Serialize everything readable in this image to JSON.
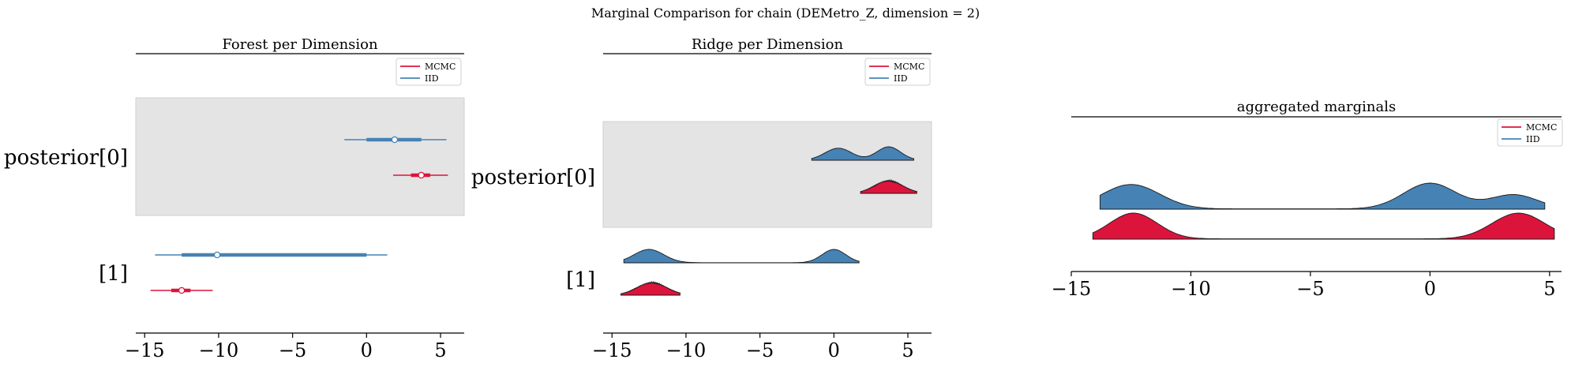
{
  "figure": {
    "suptitle": "Marginal Comparison for chain (DEMetro_Z, dimension = 2)"
  },
  "colors": {
    "mcmc": "#dc143c",
    "iid": "#4682b4",
    "band": "#e4e4e4"
  },
  "legend": {
    "mcmc_label": "MCMC",
    "iid_label": "IID"
  },
  "chart_data": [
    {
      "type": "forest",
      "title": "Forest per Dimension",
      "y_labels": [
        "posterior[0]",
        "[1]"
      ],
      "x_ticks": [
        -15,
        -10,
        -5,
        0,
        5
      ],
      "x_tick_labels": [
        "−15",
        "−10",
        "−5",
        "0",
        "5"
      ],
      "xlim": [
        -15.6,
        6.6
      ],
      "legend_position": "top-right",
      "series": [
        {
          "name": "MCMC",
          "rows": [
            {
              "dim": 0,
              "whisker": [
                1.8,
                5.5
              ],
              "iqr": [
                3.0,
                4.3
              ],
              "median": 3.7
            },
            {
              "dim": 1,
              "whisker": [
                -14.6,
                -10.4
              ],
              "iqr": [
                -13.2,
                -11.9
              ],
              "median": -12.5
            }
          ]
        },
        {
          "name": "IID",
          "rows": [
            {
              "dim": 0,
              "whisker": [
                -1.5,
                5.4
              ],
              "iqr": [
                0.0,
                3.7
              ],
              "median": 1.9
            },
            {
              "dim": 1,
              "whisker": [
                -14.3,
                1.4
              ],
              "iqr": [
                -12.5,
                0.0
              ],
              "median": -10.1
            }
          ]
        }
      ]
    },
    {
      "type": "ridgeline",
      "title": "Ridge per Dimension",
      "y_labels": [
        "posterior[0]",
        "[1]"
      ],
      "x_ticks": [
        -15,
        -10,
        -5,
        0,
        5
      ],
      "x_tick_labels": [
        "−15",
        "−10",
        "−5",
        "0",
        "5"
      ],
      "xlim": [
        -15.6,
        6.6
      ],
      "legend_position": "top-right",
      "series": [
        {
          "name": "IID",
          "dims": [
            {
              "dim": 0,
              "range": [
                -1.5,
                5.4
              ],
              "peaks": [
                [
                  0.3,
                  0.9,
                  0.85
                ],
                [
                  3.7,
                  0.8,
                  0.95
                ]
              ]
            },
            {
              "dim": 1,
              "range": [
                -14.2,
                1.7
              ],
              "peaks": [
                [
                  -12.5,
                  1.0,
                  1.0
                ],
                [
                  0.0,
                  0.8,
                  1.0
                ]
              ]
            }
          ]
        },
        {
          "name": "MCMC",
          "dims": [
            {
              "dim": 0,
              "range": [
                1.8,
                5.6
              ],
              "peaks": [
                [
                  3.7,
                  0.95,
                  1.0
                ]
              ]
            },
            {
              "dim": 1,
              "range": [
                -14.4,
                -10.4
              ],
              "peaks": [
                [
                  -12.3,
                  1.0,
                  1.0
                ]
              ]
            }
          ]
        }
      ]
    },
    {
      "type": "ridgeline",
      "title": "aggregated marginals",
      "x_ticks": [
        -15,
        -10,
        -5,
        0,
        5
      ],
      "x_tick_labels": [
        "−15",
        "−10",
        "−5",
        "0",
        "5"
      ],
      "xlim": [
        -15.0,
        5.5
      ],
      "legend_position": "top-right",
      "series": [
        {
          "name": "IID",
          "range": [
            -13.8,
            4.8
          ],
          "peaks": [
            [
              -12.5,
              1.2,
              0.95
            ],
            [
              0.0,
              1.1,
              1.0
            ],
            [
              3.5,
              1.0,
              0.55
            ]
          ]
        },
        {
          "name": "MCMC",
          "range": [
            -14.1,
            5.2
          ],
          "peaks": [
            [
              -12.4,
              1.0,
              1.0
            ],
            [
              3.7,
              1.1,
              1.0
            ]
          ]
        }
      ]
    }
  ]
}
